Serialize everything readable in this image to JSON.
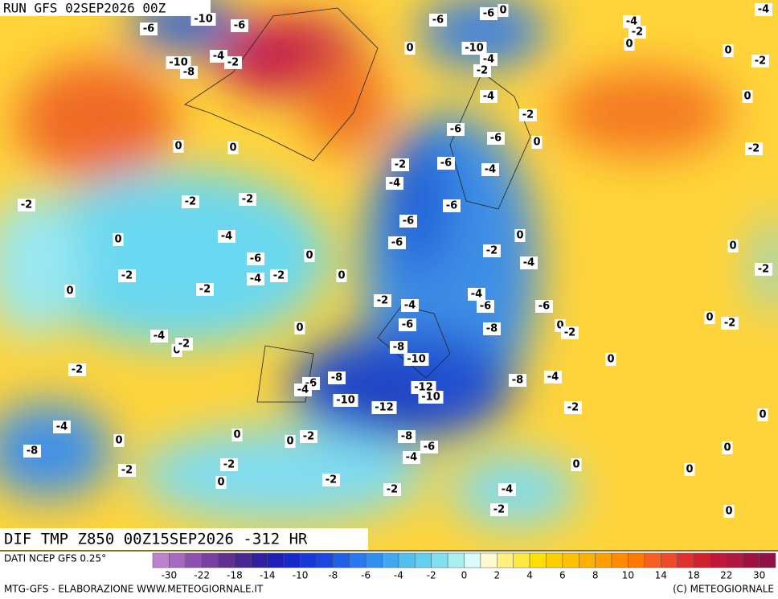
{
  "header": {
    "run": "RUN GFS 02SEP2026 00Z"
  },
  "title": "DIF TMP Z850 00Z15SEP2026 -312 HR",
  "source": "DATI NCEP GFS 0.25°",
  "footer": {
    "left": "MTG-GFS - ELABORAZIONE WWW.METEOGIORNALE.IT",
    "right": "(C) METEOGIORNALE"
  },
  "legend": {
    "ticks": [
      "-30",
      "-22",
      "-18",
      "-14",
      "-10",
      "-8",
      "-6",
      "-4",
      "-2",
      "0",
      "2",
      "4",
      "6",
      "8",
      "10",
      "14",
      "18",
      "22",
      "30"
    ],
    "colors": [
      "#c080d0",
      "#a868c0",
      "#9050b0",
      "#7840a0",
      "#603090",
      "#482890",
      "#3020a0",
      "#2020b8",
      "#1828c8",
      "#1838d8",
      "#1848e0",
      "#2060e8",
      "#2878f0",
      "#3090f0",
      "#40a8f0",
      "#50c0f0",
      "#60d0f0",
      "#80e0f0",
      "#a8f0f0",
      "#d8fafa",
      "#fffad0",
      "#fff080",
      "#ffe840",
      "#ffe000",
      "#ffd000",
      "#ffc000",
      "#ffb000",
      "#ffa000",
      "#ff8c00",
      "#ff7800",
      "#f86020",
      "#f04828",
      "#e03030",
      "#d02030",
      "#c01838",
      "#b01840",
      "#a01040",
      "#901048"
    ]
  },
  "contour_labels": [
    "-6",
    "-6",
    "-10",
    "-10",
    "-8",
    "-4",
    "-2",
    "0",
    "-6",
    "-6",
    "0",
    "-10",
    "-4",
    "-2",
    "-4",
    "-2",
    "0",
    "-4",
    "-2",
    "0",
    "0",
    "-2",
    "-4",
    "-2",
    "-6",
    "-6",
    "0",
    "-6",
    "-4",
    "-2",
    "-4",
    "0",
    "0",
    "-2",
    "-2",
    "-2",
    "-6",
    "-6",
    "-6",
    "0",
    "-4",
    "-6",
    "-4",
    "-2",
    "0",
    "0",
    "-2",
    "0",
    "-2",
    "0",
    "-2",
    "-4",
    "0",
    "-2",
    "-4",
    "-6",
    "-2",
    "-4",
    "-6",
    "-6",
    "0",
    "-2",
    "-8",
    "0",
    "-2",
    "-4",
    "0",
    "-2",
    "0",
    "-8",
    "-10",
    "-2",
    "-6",
    "-4",
    "-8",
    "-10",
    "-12",
    "-12",
    "-10",
    "-8",
    "-4",
    "0",
    "-2",
    "0",
    "-4",
    "-8",
    "0",
    "0",
    "0",
    "-2",
    "-8",
    "-6",
    "-4",
    "-2",
    "-2",
    "0",
    "-2",
    "-2",
    "0",
    "0",
    "0",
    "-4",
    "-2",
    "0"
  ]
}
